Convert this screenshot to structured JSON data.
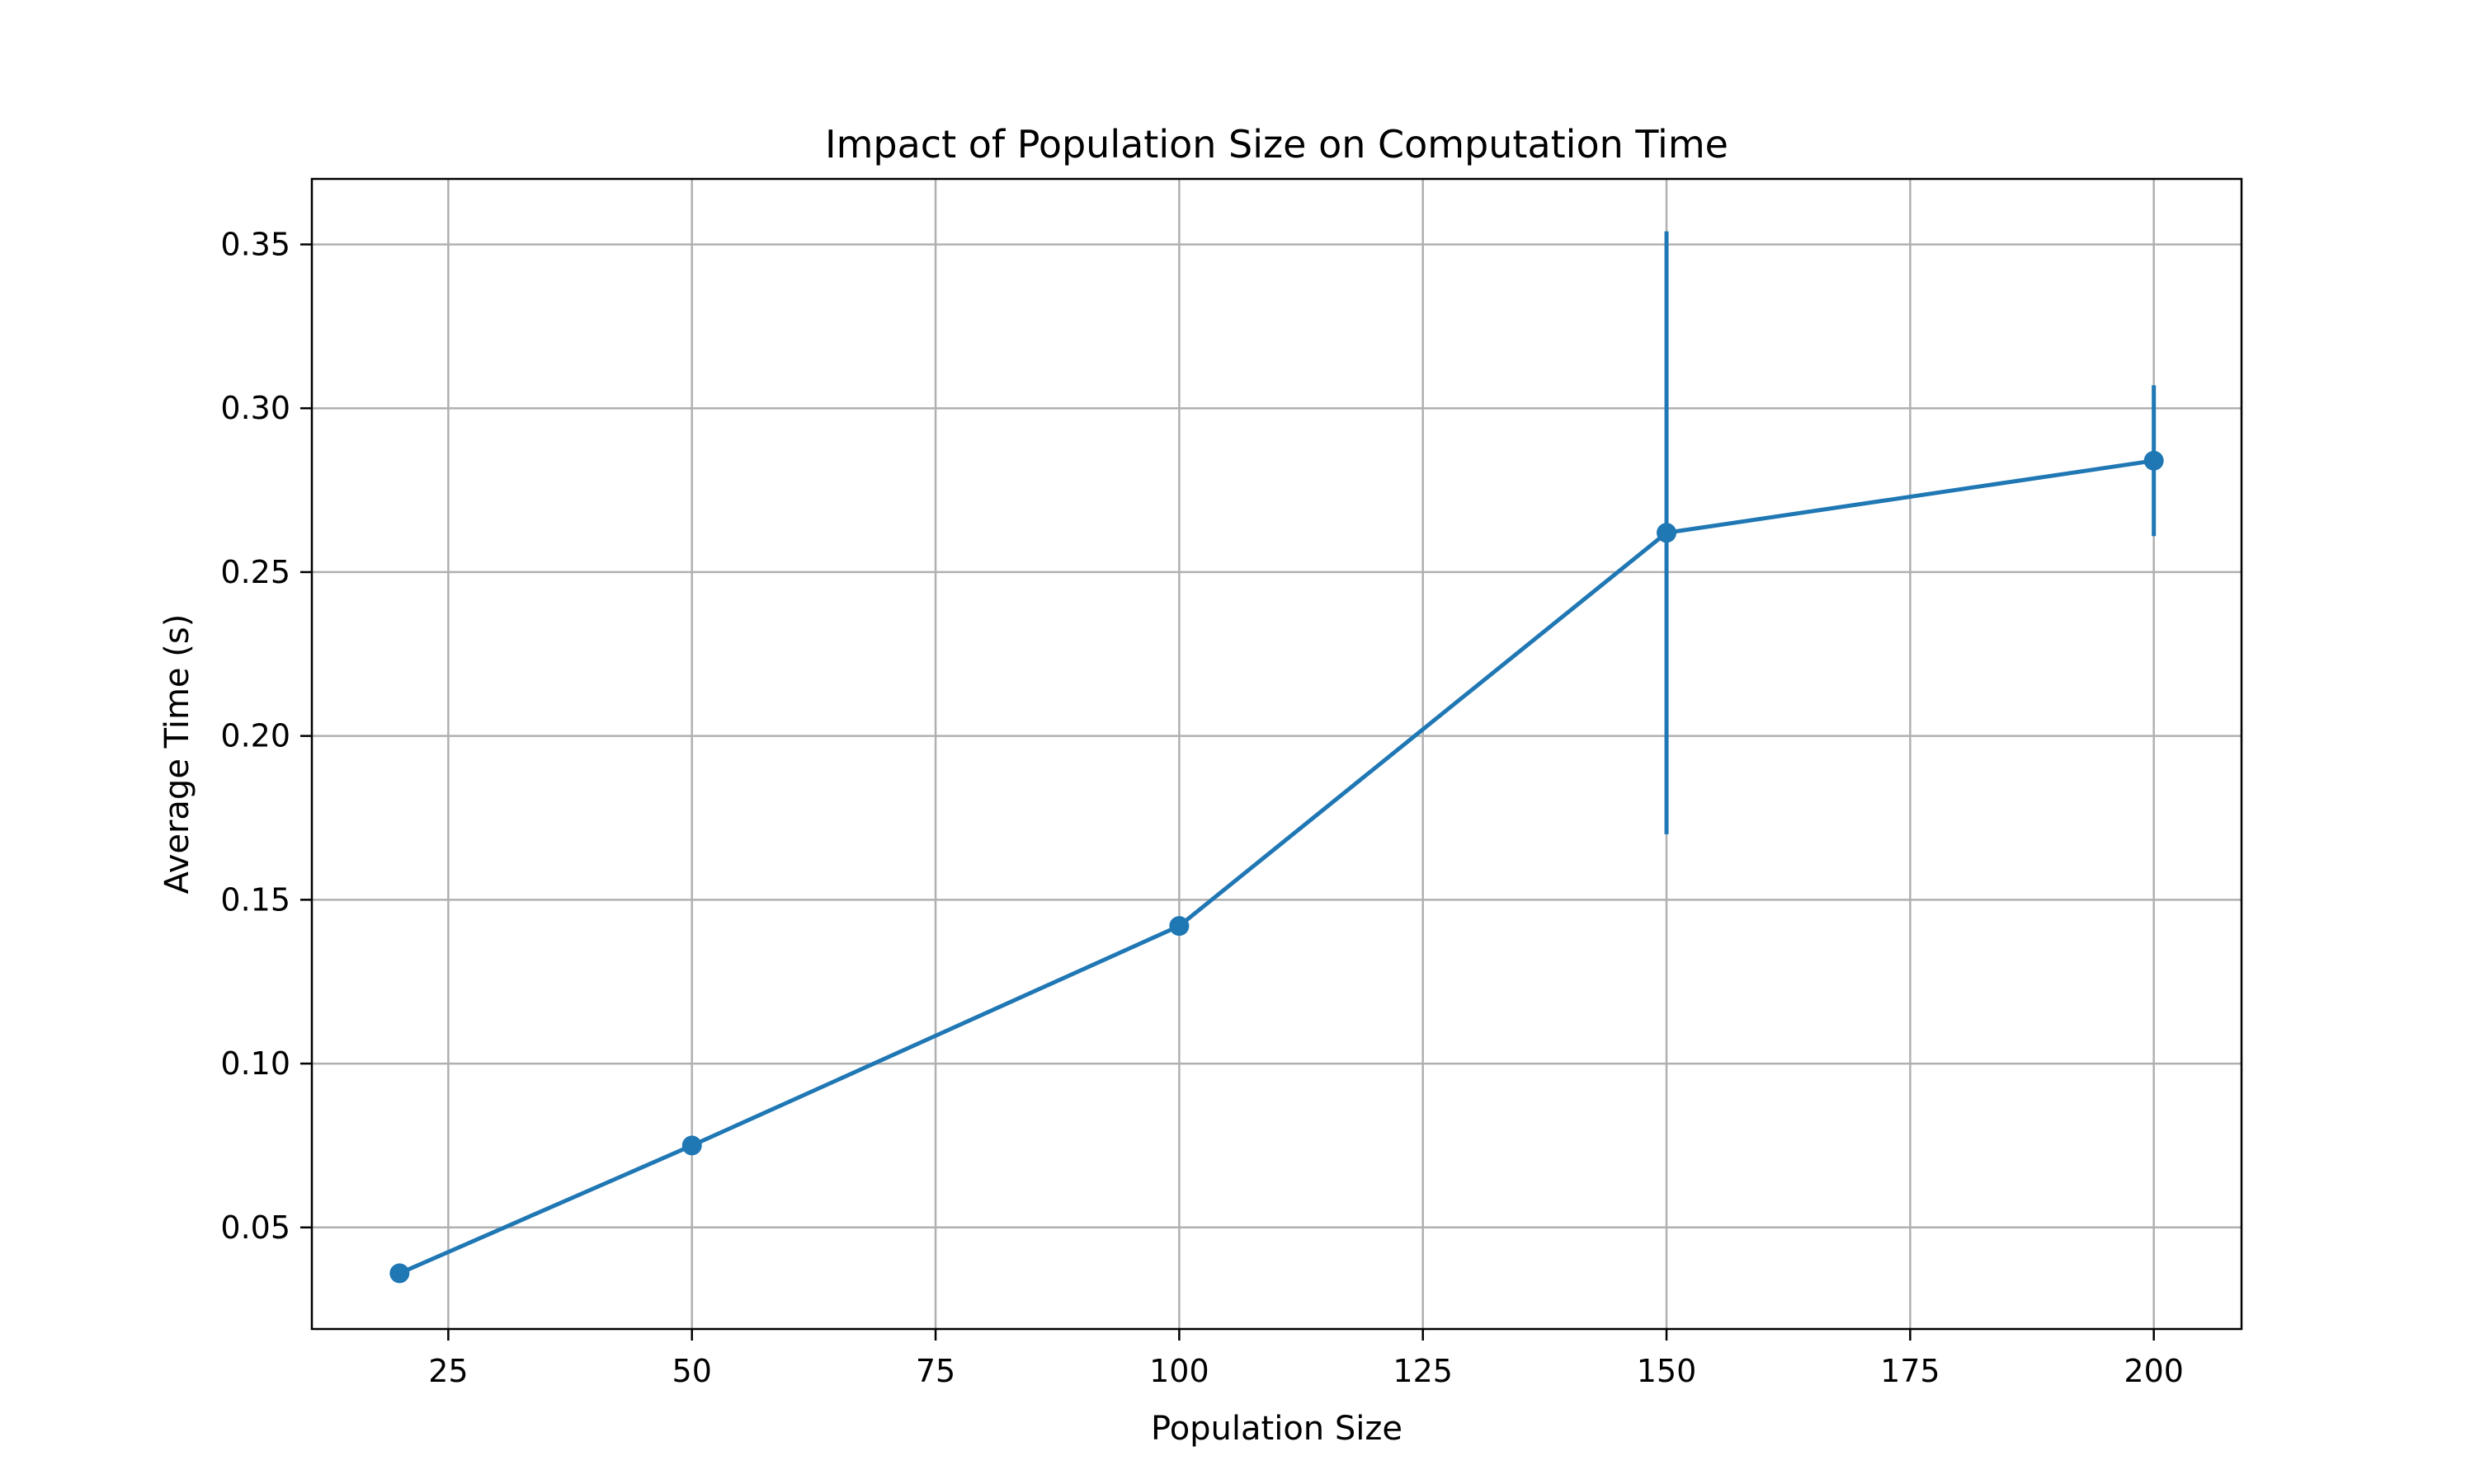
{
  "chart_data": {
    "type": "line",
    "title": "Impact of Population Size on Computation Time",
    "xlabel": "Population Size",
    "ylabel": "Average Time (s)",
    "xlim": [
      11,
      209
    ],
    "ylim": [
      0.019,
      0.37
    ],
    "xticks": [
      25,
      50,
      75,
      100,
      125,
      150,
      175,
      200
    ],
    "xtick_labels": [
      "25",
      "50",
      "75",
      "100",
      "125",
      "150",
      "175",
      "200"
    ],
    "yticks": [
      0.05,
      0.1,
      0.15,
      0.2,
      0.25,
      0.3,
      0.35
    ],
    "ytick_labels": [
      "0.05",
      "0.10",
      "0.15",
      "0.20",
      "0.25",
      "0.30",
      "0.35"
    ],
    "grid": true,
    "series": [
      {
        "color": "#1f77b4",
        "marker": "circle",
        "x": [
          20,
          50,
          100,
          150,
          200
        ],
        "y": [
          0.036,
          0.075,
          0.142,
          0.262,
          0.284
        ],
        "yerr_low": [
          0.036,
          0.075,
          0.142,
          0.17,
          0.261
        ],
        "yerr_high": [
          0.036,
          0.075,
          0.142,
          0.354,
          0.307
        ]
      }
    ]
  }
}
